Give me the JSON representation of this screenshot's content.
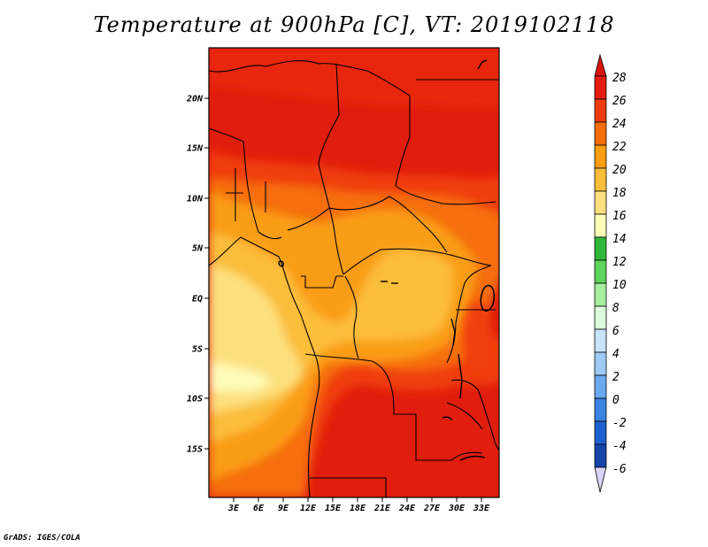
{
  "title": "Temperature at 900hPa [C], VT: 2019102118",
  "credit": "GrADS: IGES/COLA",
  "map": {
    "lon_range": [
      0,
      35
    ],
    "lat_range": [
      -20,
      24
    ],
    "lat_ticks": [
      {
        "lat": 20,
        "label": "20N"
      },
      {
        "lat": 15,
        "label": "15N"
      },
      {
        "lat": 10,
        "label": "10N"
      },
      {
        "lat": 5,
        "label": "5N"
      },
      {
        "lat": 0,
        "label": "EQ"
      },
      {
        "lat": -5,
        "label": "5S"
      },
      {
        "lat": -10,
        "label": "10S"
      },
      {
        "lat": -15,
        "label": "15S"
      }
    ],
    "lon_ticks": [
      {
        "lon": 3,
        "label": "3E"
      },
      {
        "lon": 6,
        "label": "6E"
      },
      {
        "lon": 9,
        "label": "9E"
      },
      {
        "lon": 12,
        "label": "12E"
      },
      {
        "lon": 15,
        "label": "15E"
      },
      {
        "lon": 18,
        "label": "18E"
      },
      {
        "lon": 21,
        "label": "21E"
      },
      {
        "lon": 24,
        "label": "24E"
      },
      {
        "lon": 27,
        "label": "27E"
      },
      {
        "lon": 30,
        "label": "30E"
      },
      {
        "lon": 33,
        "label": "33E"
      }
    ]
  },
  "colorbar": {
    "levels": [
      {
        "value": "28",
        "color": "#e61c0f"
      },
      {
        "value": "26",
        "color": "#f03c0c"
      },
      {
        "value": "24",
        "color": "#f66e0a"
      },
      {
        "value": "22",
        "color": "#fa9d12"
      },
      {
        "value": "20",
        "color": "#fbbe3a"
      },
      {
        "value": "18",
        "color": "#fde07e"
      },
      {
        "value": "16",
        "color": "#fefbb9"
      },
      {
        "value": "14",
        "color": "#2fb838"
      },
      {
        "value": "12",
        "color": "#5fd45a"
      },
      {
        "value": "10",
        "color": "#a6ef9e"
      },
      {
        "value": "8",
        "color": "#dcfadc"
      },
      {
        "value": "6",
        "color": "#c7e4fb"
      },
      {
        "value": "4",
        "color": "#9ecbf6"
      },
      {
        "value": "2",
        "color": "#6aa9ef"
      },
      {
        "value": "0",
        "color": "#3a82e3"
      },
      {
        "value": "-2",
        "color": "#1e60cf"
      },
      {
        "value": "-4",
        "color": "#1544ad"
      },
      {
        "value": "-6",
        "color": "#0d1b7a"
      }
    ],
    "top_cap_color": "#d8140c",
    "bottom_cap_color": "#dad4f7"
  }
}
